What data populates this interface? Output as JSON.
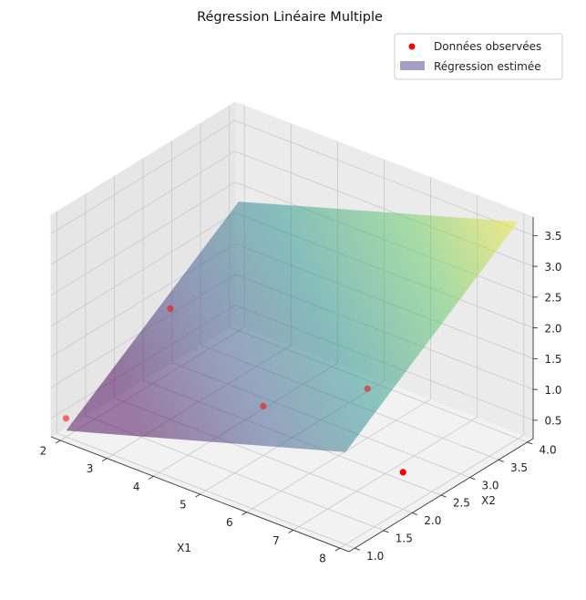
{
  "chart_data": {
    "type": "scatter3d+surface",
    "title": "Régression Linéaire Multiple",
    "xlabel": "X1",
    "ylabel": "X2",
    "zlabel": "",
    "x_ticks": [
      "2",
      "3",
      "4",
      "5",
      "6",
      "7",
      "8"
    ],
    "y_ticks": [
      "1.0",
      "1.5",
      "2.0",
      "2.5",
      "3.0",
      "3.5",
      "4.0"
    ],
    "z_ticks": [
      "0.5",
      "1.0",
      "1.5",
      "2.0",
      "2.5",
      "3.0",
      "3.5"
    ],
    "xlim": [
      1.8,
      8.2
    ],
    "ylim": [
      0.9,
      4.1
    ],
    "zlim": [
      0.2,
      3.8
    ],
    "grid": true,
    "legend_position": "top-right",
    "series": [
      {
        "name": "Données observées",
        "kind": "scatter",
        "color": "#ff0000",
        "points": [
          {
            "x": 2,
            "y": 1,
            "z": 0.5
          },
          {
            "x": 3,
            "y": 2,
            "z": 2.0
          },
          {
            "x": 5,
            "y": 2,
            "z": 1.0
          },
          {
            "x": 6,
            "y": 3,
            "z": 1.0
          },
          {
            "x": 8,
            "y": 2,
            "z": 0.8
          }
        ]
      },
      {
        "name": "Régression estimée",
        "kind": "surface",
        "colormap": "viridis",
        "alpha": 0.5,
        "corners": [
          {
            "x": 2,
            "y": 1,
            "z": 0.3
          },
          {
            "x": 8,
            "y": 1,
            "z": 1.7
          },
          {
            "x": 8,
            "y": 4,
            "z": 3.72
          },
          {
            "x": 2,
            "y": 4,
            "z": 2.3
          }
        ]
      }
    ]
  }
}
